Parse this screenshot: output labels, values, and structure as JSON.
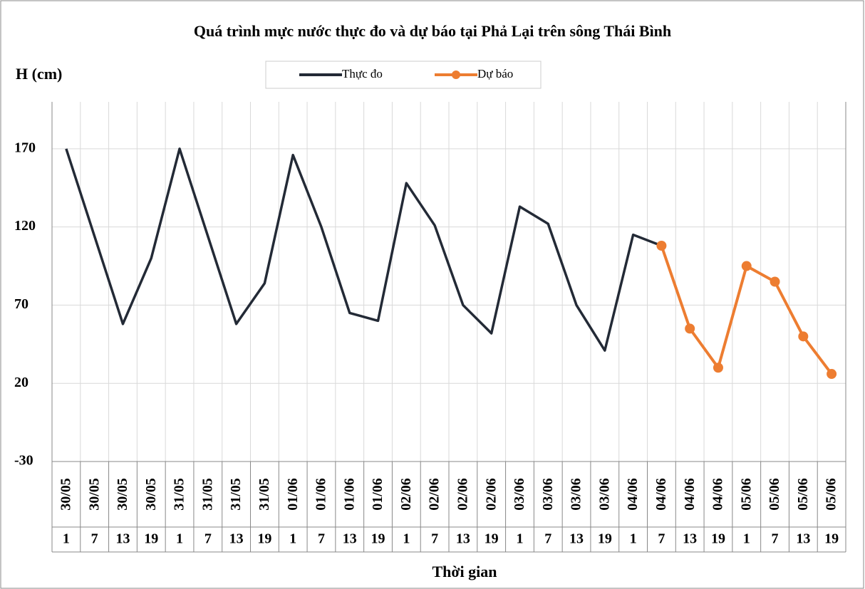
{
  "chart_data": {
    "type": "line",
    "title": "Quá trình mực nước thực đo và dự báo tại Phả Lại trên sông Thái Bình",
    "y_label": "H (cm)",
    "x_label": "Thời gian",
    "categories": [
      "30/05",
      "30/05",
      "30/05",
      "30/05",
      "31/05",
      "31/05",
      "31/05",
      "31/05",
      "01/06",
      "01/06",
      "01/06",
      "01/06",
      "02/06",
      "02/06",
      "02/06",
      "02/06",
      "03/06",
      "03/06",
      "03/06",
      "03/06",
      "04/06",
      "04/06",
      "04/06",
      "04/06",
      "05/06",
      "05/06",
      "05/06",
      "05/06"
    ],
    "category_hours": [
      "1",
      "7",
      "13",
      "19",
      "1",
      "7",
      "13",
      "19",
      "1",
      "7",
      "13",
      "19",
      "1",
      "7",
      "13",
      "19",
      "1",
      "7",
      "13",
      "19",
      "1",
      "7",
      "13",
      "19",
      "1",
      "7",
      "13",
      "19"
    ],
    "series": [
      {
        "name": "Thực đo",
        "color": "#232a36",
        "markers": false,
        "values": [
          170,
          114,
          58,
          100,
          170,
          114,
          58,
          84,
          166,
          120,
          65,
          60,
          148,
          121,
          70,
          52,
          133,
          122,
          70,
          41,
          115,
          108,
          null,
          null,
          null,
          null,
          null,
          null
        ]
      },
      {
        "name": "Dự báo",
        "color": "#ed7d31",
        "markers": true,
        "values": [
          null,
          null,
          null,
          null,
          null,
          null,
          null,
          null,
          null,
          null,
          null,
          null,
          null,
          null,
          null,
          null,
          null,
          null,
          null,
          null,
          null,
          108,
          55,
          30,
          95,
          85,
          50,
          26
        ]
      }
    ],
    "ylim": [
      -30,
      200
    ],
    "yticks": [
      -30,
      20,
      70,
      120,
      170
    ],
    "grid": true
  }
}
